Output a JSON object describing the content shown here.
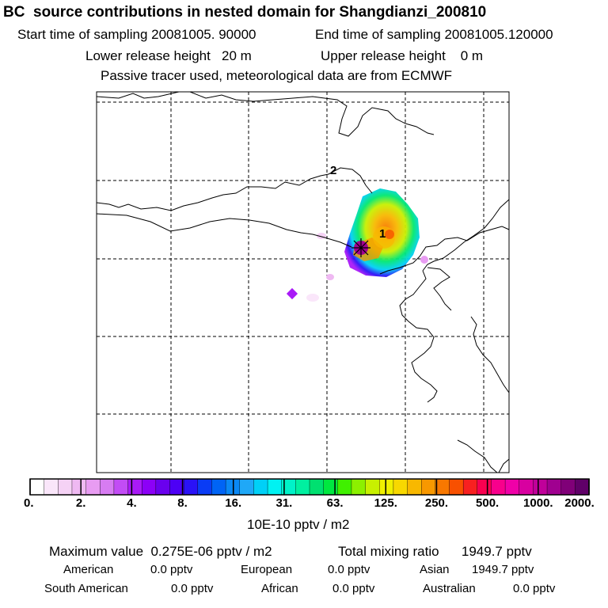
{
  "header": {
    "title": "BC  source contributions in nested domain for Shangdianzi_200810",
    "start_time": "Start time of sampling 20081005. 90000",
    "end_time": "End time of sampling 20081005.120000",
    "lower_height": "Lower release height   20 m",
    "upper_height": "Upper release height    0 m",
    "tracer_note": "Passive tracer used, meteorological data are from ECMWF"
  },
  "map": {
    "labels": [
      "1",
      "2"
    ],
    "receptor_marker": "asterisk-marker"
  },
  "colorbar": {
    "tick_labels": [
      "0.",
      "2.",
      "4.",
      "8.",
      "16.",
      "31.",
      "63.",
      "125.",
      "250.",
      "500.",
      "1000.",
      "2000."
    ],
    "colors": [
      "#ffffff",
      "#fae6fa",
      "#f5d2f5",
      "#efb9f2",
      "#e89cf2",
      "#d77cf2",
      "#c24cf5",
      "#a91af7",
      "#8c00f7",
      "#6a00ee",
      "#4d00f5",
      "#2a12f7",
      "#0a3cf5",
      "#0064f5",
      "#0a88f5",
      "#1fa8f7",
      "#00d0f7",
      "#00f2f2",
      "#00f2c8",
      "#00f0a0",
      "#00e070",
      "#00e840",
      "#40f000",
      "#8cf000",
      "#c8f000",
      "#f0f000",
      "#f8d800",
      "#f8b800",
      "#f89800",
      "#f87800",
      "#f85000",
      "#f82020",
      "#f80050",
      "#f8008c",
      "#f000a8",
      "#d800a0",
      "#c0009a",
      "#a00090",
      "#800078",
      "#600068"
    ],
    "unit": "10E-10 pptv / m2"
  },
  "summary": {
    "max_value": "Maximum value  0.275E-06 pptv / m2",
    "total_mixing": "Total mixing ratio      1949.7 pptv",
    "regions": [
      {
        "name": "American",
        "value": "0.0 pptv"
      },
      {
        "name": "European",
        "value": "0.0 pptv"
      },
      {
        "name": "Asian",
        "value": "1949.7 pptv"
      },
      {
        "name": "South American",
        "value": "0.0 pptv"
      },
      {
        "name": "African",
        "value": "0.0 pptv"
      },
      {
        "name": "Australian",
        "value": "0.0 pptv"
      }
    ]
  }
}
